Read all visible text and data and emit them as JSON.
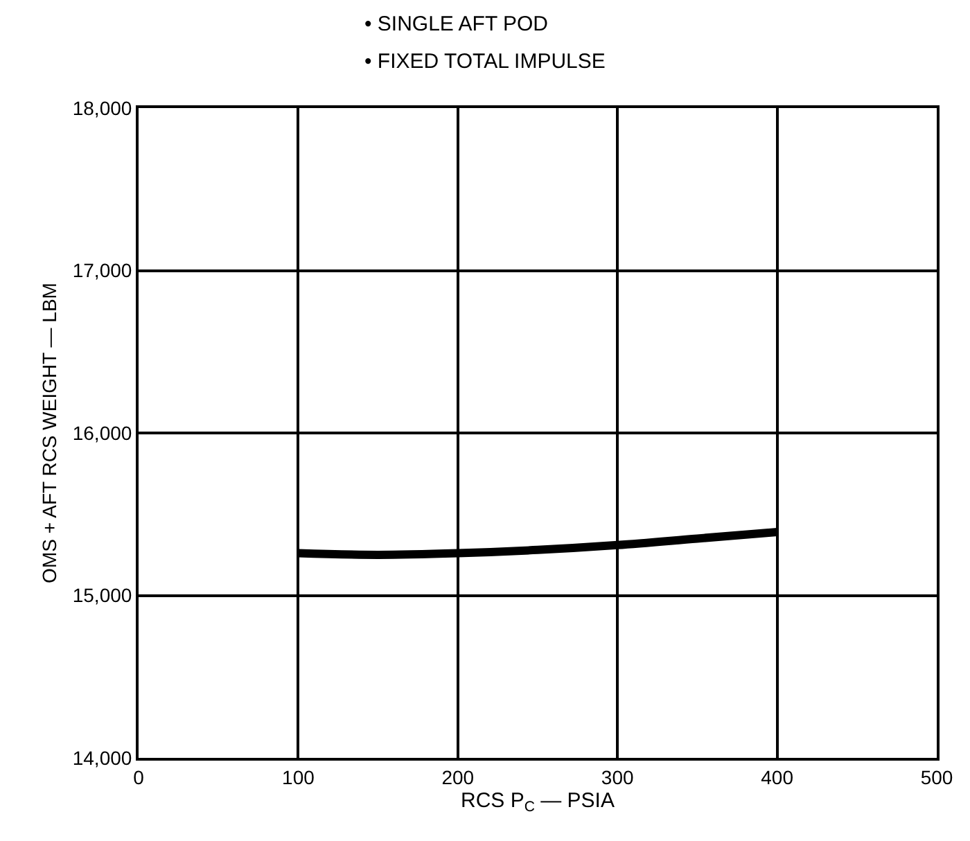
{
  "chart_data": {
    "type": "line",
    "annotations": [
      "• SINGLE AFT POD",
      "• FIXED TOTAL IMPULSE"
    ],
    "xlabel": "RCS P$_{C}$ — PSIA",
    "ylabel": "OMS + AFT RCS WEIGHT — LBM",
    "x": [
      100,
      150,
      200,
      250,
      300,
      350,
      400
    ],
    "series": [
      {
        "color": "#000000",
        "values": [
          15260,
          15250,
          15260,
          15280,
          15310,
          15350,
          15390
        ]
      }
    ],
    "xlim": [
      0,
      500
    ],
    "xticks": [
      0,
      100,
      200,
      300,
      400,
      500
    ],
    "ylim": [
      14000,
      18000
    ],
    "yticks": [
      {
        "value": 14000,
        "label": "14,000"
      },
      {
        "value": 15000,
        "label": "15,000"
      },
      {
        "value": 16000,
        "label": "16,000"
      },
      {
        "value": 17000,
        "label": "17,000"
      },
      {
        "value": 18000,
        "label": "18,000"
      }
    ],
    "grid": true,
    "legend": false,
    "marker": "none",
    "line_style": "solid"
  }
}
